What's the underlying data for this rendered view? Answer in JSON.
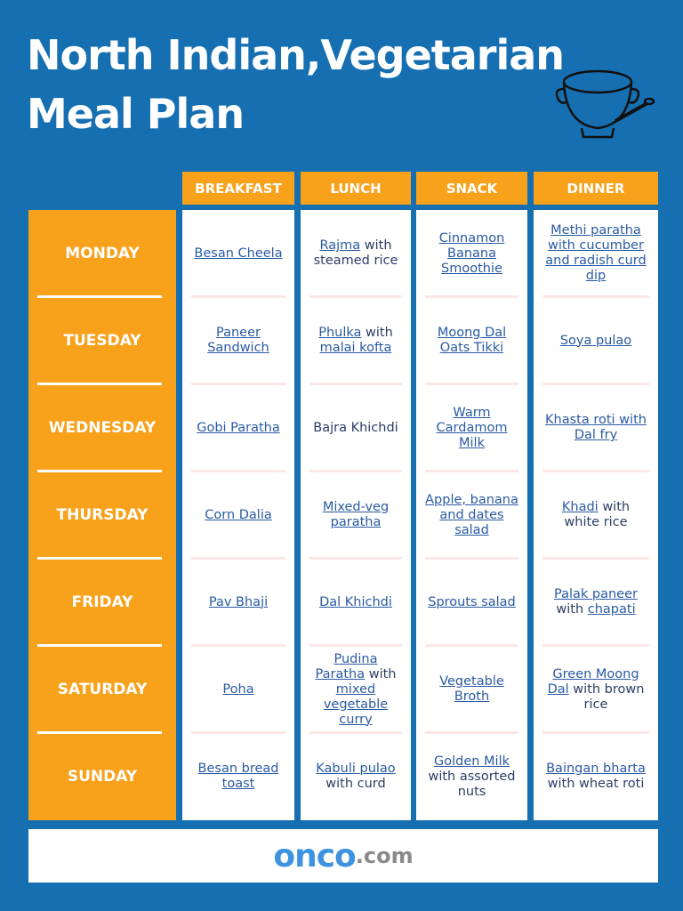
{
  "title": [
    "North Indian,Vegetarian",
    "Meal Plan"
  ],
  "columns": [
    "BREAKFAST",
    "LUNCH",
    "SNACK",
    "DINNER"
  ],
  "rows": [
    {
      "day": "MONDAY",
      "cells": [
        [
          {
            "text": "Besan Cheela",
            "link": true
          }
        ],
        [
          {
            "text": "Rajma",
            "link": true
          },
          {
            "text": " with steamed rice",
            "link": false
          }
        ],
        [
          {
            "text": "Cinnamon Banana Smoothie",
            "link": true
          }
        ],
        [
          {
            "text": "Methi paratha with cucumber and radish curd dip",
            "link": true
          }
        ]
      ]
    },
    {
      "day": "TUESDAY",
      "cells": [
        [
          {
            "text": "Paneer Sandwich",
            "link": true
          }
        ],
        [
          {
            "text": "Phulka",
            "link": true
          },
          {
            "text": " with ",
            "link": false
          },
          {
            "text": "malai kofta",
            "link": true
          }
        ],
        [
          {
            "text": "Moong Dal Oats Tikki",
            "link": true
          }
        ],
        [
          {
            "text": "Soya pulao",
            "link": true
          }
        ]
      ]
    },
    {
      "day": "WEDNESDAY",
      "cells": [
        [
          {
            "text": "Gobi Paratha",
            "link": true
          }
        ],
        [
          {
            "text": "Bajra Khichdi",
            "link": false
          }
        ],
        [
          {
            "text": "Warm Cardamom Milk",
            "link": true
          }
        ],
        [
          {
            "text": "Khasta roti with Dal fry",
            "link": true
          }
        ]
      ]
    },
    {
      "day": "THURSDAY",
      "cells": [
        [
          {
            "text": "Corn Dalia",
            "link": true
          }
        ],
        [
          {
            "text": "Mixed-veg paratha",
            "link": true
          }
        ],
        [
          {
            "text": "Apple, banana and dates salad",
            "link": true
          }
        ],
        [
          {
            "text": "Khadi",
            "link": true
          },
          {
            "text": " with white rice",
            "link": false
          }
        ]
      ]
    },
    {
      "day": "FRIDAY",
      "cells": [
        [
          {
            "text": "Pav Bhaji",
            "link": true
          }
        ],
        [
          {
            "text": "Dal Khichdi",
            "link": true
          }
        ],
        [
          {
            "text": "Sprouts salad",
            "link": true
          }
        ],
        [
          {
            "text": "Palak paneer",
            "link": true
          },
          {
            "text": " with ",
            "link": false
          },
          {
            "text": "chapati",
            "link": true
          }
        ]
      ]
    },
    {
      "day": "SATURDAY",
      "cells": [
        [
          {
            "text": "Poha",
            "link": true
          }
        ],
        [
          {
            "text": "Pudina Paratha",
            "link": true
          },
          {
            "text": " with ",
            "link": false
          },
          {
            "text": "mixed vegetable curry",
            "link": true
          }
        ],
        [
          {
            "text": "Vegetable Broth",
            "link": true
          }
        ],
        [
          {
            "text": "Green Moong Dal",
            "link": true
          },
          {
            "text": " with brown rice",
            "link": false
          }
        ]
      ]
    },
    {
      "day": "SUNDAY",
      "cells": [
        [
          {
            "text": "Besan bread toast",
            "link": true
          }
        ],
        [
          {
            "text": "Kabuli pulao",
            "link": true
          },
          {
            "text": " with curd",
            "link": false
          }
        ],
        [
          {
            "text": "Golden Milk",
            "link": true
          },
          {
            "text": " with assorted nuts",
            "link": false
          }
        ],
        [
          {
            "text": "Baingan bharta",
            "link": true
          },
          {
            "text": " with wheat roti",
            "link": false
          }
        ]
      ]
    }
  ],
  "footer": {
    "logo": "onco",
    "domain": ".com"
  }
}
